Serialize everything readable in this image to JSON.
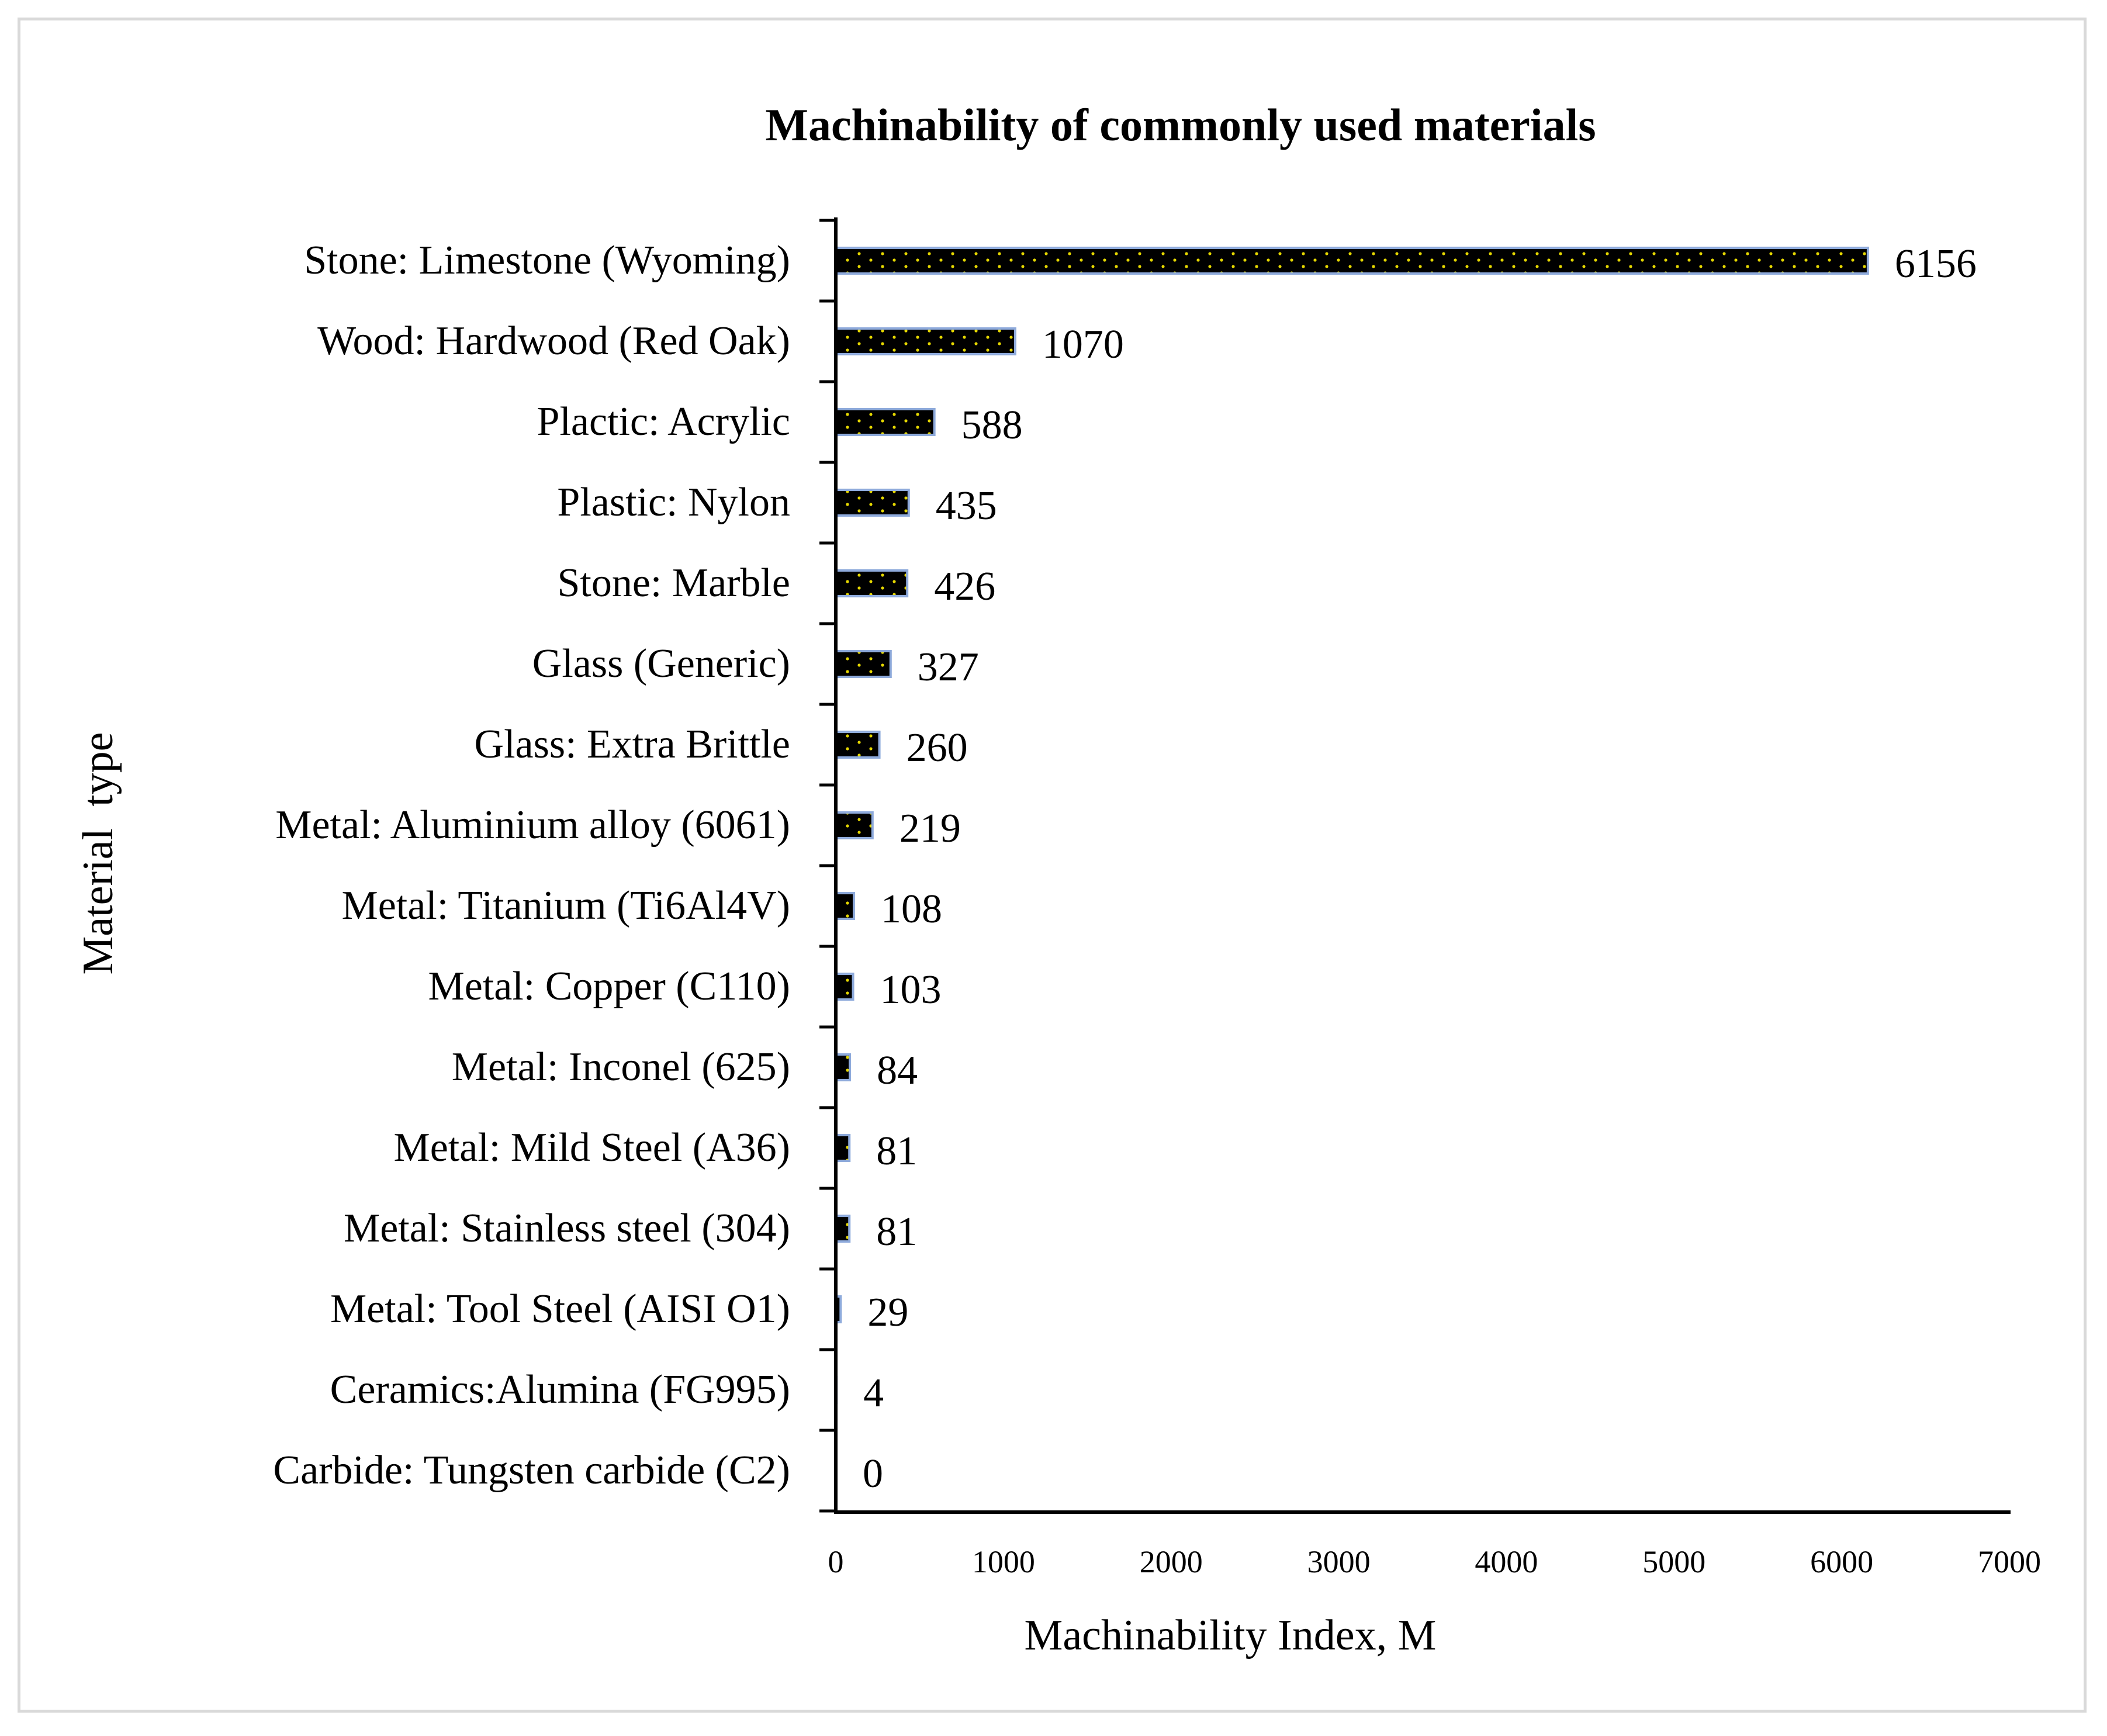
{
  "chart_data": {
    "type": "bar",
    "orientation": "horizontal",
    "title": "Machinability of commonly used materials",
    "xlabel": "Machinability Index, M",
    "ylabel": "Material  type",
    "xlim": [
      0,
      7000
    ],
    "xticks": [
      0,
      1000,
      2000,
      3000,
      4000,
      5000,
      6000,
      7000
    ],
    "grid": false,
    "legend": "none",
    "categories": [
      "Stone: Limestone (Wyoming)",
      "Wood: Hardwood (Red Oak)",
      "Plactic: Acrylic",
      "Plastic: Nylon",
      "Stone: Marble",
      "Glass (Generic)",
      "Glass: Extra Brittle",
      "Metal: Aluminium alloy (6061)",
      "Metal: Titanium (Ti6Al4V)",
      "Metal: Copper (C110)",
      "Metal: Inconel (625)",
      "Metal: Mild Steel (A36)",
      "Metal: Stainless steel (304)",
      "Metal: Tool Steel (AISI O1)",
      "Ceramics:Alumina (FG995)",
      "Carbide: Tungsten carbide (C2)"
    ],
    "values": [
      6156,
      1070,
      588,
      435,
      426,
      327,
      260,
      219,
      108,
      103,
      84,
      81,
      81,
      29,
      4,
      0
    ],
    "colors": {
      "bar_fill": "#000000",
      "bar_pattern_dots": "#e6d800",
      "bar_outline": "#8eaadb",
      "axis": "#000000"
    }
  }
}
